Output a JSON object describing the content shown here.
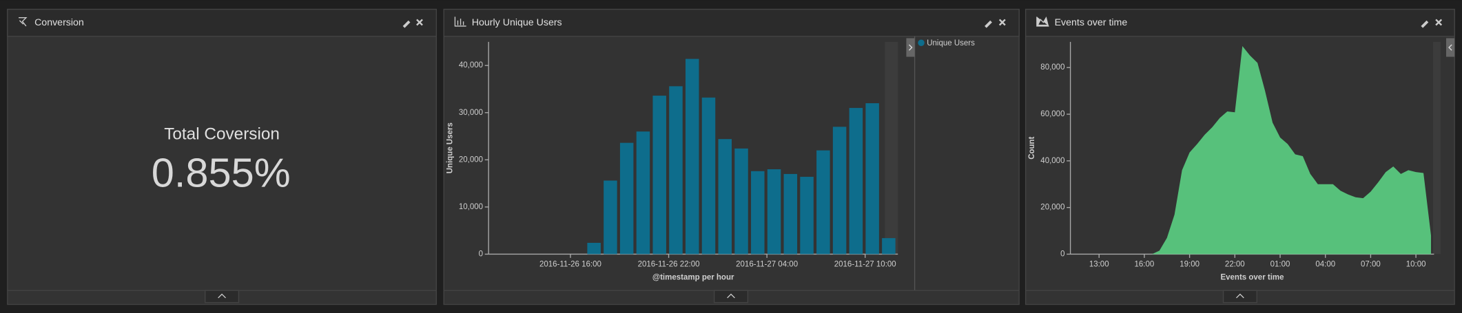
{
  "panel": {
    "title": "Conversion",
    "metric_label": "Total Coversion",
    "metric_value": "0.855%"
  },
  "chart_data": [
    {
      "type": "bar",
      "title": "Hourly Unique Users",
      "x_label": "@timestamp per hour",
      "y_label": "Unique Users",
      "x": [
        "2016-11-26 17:00",
        "2016-11-26 18:00",
        "2016-11-26 19:00",
        "2016-11-26 20:00",
        "2016-11-26 21:00",
        "2016-11-26 22:00",
        "2016-11-26 23:00",
        "2016-11-27 00:00",
        "2016-11-27 01:00",
        "2016-11-27 02:00",
        "2016-11-27 03:00",
        "2016-11-27 04:00",
        "2016-11-27 05:00",
        "2016-11-27 06:00",
        "2016-11-27 07:00",
        "2016-11-27 08:00",
        "2016-11-27 09:00",
        "2016-11-27 10:00",
        "2016-11-27 11:00"
      ],
      "series": [
        {
          "name": "Unique Users",
          "color": "#0e6d8c",
          "values": [
            2400,
            15600,
            23600,
            26000,
            33600,
            35600,
            41400,
            33200,
            24400,
            22400,
            17600,
            18000,
            17000,
            16400,
            22000,
            27000,
            31000,
            32000,
            3400
          ]
        }
      ],
      "xlim": [
        "2016-11-26 11:00",
        "2016-11-27 12:00"
      ],
      "xticks": [
        "2016-11-26 16:00",
        "2016-11-26 22:00",
        "2016-11-27 04:00",
        "2016-11-27 10:00"
      ],
      "ylim": [
        0,
        45000
      ],
      "yticks": [
        0,
        {
          "value": 10000,
          "label": "10,000"
        },
        {
          "value": 20000,
          "label": "20,000"
        },
        {
          "value": 30000,
          "label": "30,000"
        },
        {
          "value": 40000,
          "label": "40,000"
        }
      ],
      "legend": "right"
    },
    {
      "type": "area",
      "title": "Events over time",
      "x_label": "Events over time",
      "y_label": "Count",
      "color": "#57c17b",
      "x": [
        16.5,
        17,
        17.5,
        18,
        18.5,
        19,
        19.5,
        20,
        20.5,
        21,
        21.5,
        22,
        22.5,
        23,
        23.5,
        24,
        24.5,
        25,
        25.5,
        26,
        26.5,
        27,
        27.5,
        28,
        28.5,
        29,
        29.5,
        30,
        30.5,
        31,
        31.5,
        32,
        32.5,
        33,
        33.5,
        34,
        34.5,
        35
      ],
      "values": [
        0,
        1500,
        7000,
        17000,
        36000,
        43600,
        47200,
        51200,
        54400,
        58400,
        61200,
        60800,
        89200,
        85200,
        82000,
        70000,
        56400,
        50000,
        47200,
        42800,
        42000,
        34400,
        30000,
        30000,
        30000,
        27200,
        25600,
        24400,
        24000,
        26800,
        30800,
        35200,
        37600,
        34400,
        36000,
        35200,
        34800,
        8000
      ],
      "xlim": [
        11.1,
        35.2
      ],
      "xticks": [
        {
          "value": 13,
          "label": "13:00"
        },
        {
          "value": 16,
          "label": "16:00"
        },
        {
          "value": 19,
          "label": "19:00"
        },
        {
          "value": 22,
          "label": "22:00"
        },
        {
          "value": 25,
          "label": "01:00"
        },
        {
          "value": 28,
          "label": "04:00"
        },
        {
          "value": 31,
          "label": "07:00"
        },
        {
          "value": 34,
          "label": "10:00"
        }
      ],
      "ylim": [
        0,
        91000
      ],
      "yticks": [
        0,
        {
          "value": 20000,
          "label": "20,000"
        },
        {
          "value": 40000,
          "label": "40,000"
        },
        {
          "value": 60000,
          "label": "60,000"
        },
        {
          "value": 80000,
          "label": "80,000"
        }
      ]
    }
  ]
}
